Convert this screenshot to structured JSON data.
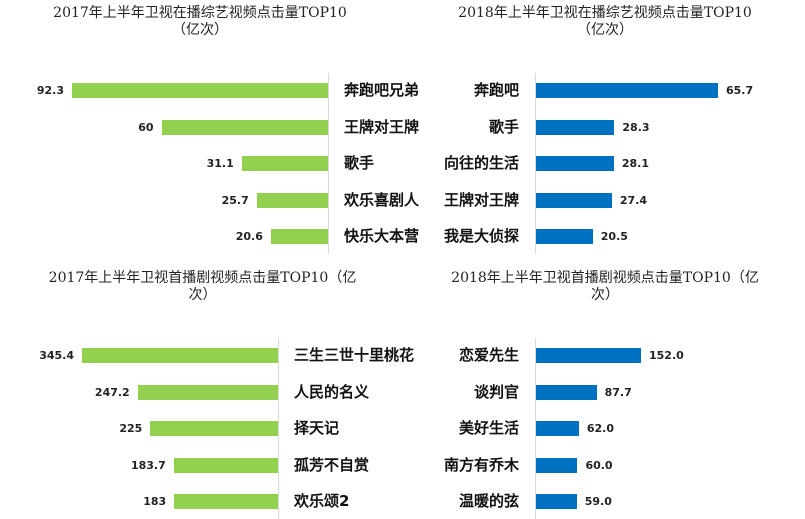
{
  "chart_data": [
    {
      "type": "bar",
      "title": "2017年上半年卫视在播综艺视频点击量TOP10（亿次）",
      "title_lines": [
        "2017年上半年卫视在播综艺视频点击量TOP10",
        "（亿次）"
      ],
      "categories": [
        "奔跑吧兄弟",
        "王牌对王牌",
        "歌手",
        "欢乐喜剧人",
        "快乐大本营"
      ],
      "series": [
        {
          "values": [
            92.3,
            60,
            31.1,
            25.7,
            20.6
          ]
        }
      ],
      "value_labels": [
        "92.3",
        "60",
        "31.1",
        "25.7",
        "20.6"
      ],
      "xlim": [
        0,
        92.3
      ],
      "orientation": "horizontal",
      "bar_direction": "leftward",
      "color": "#92d050"
    },
    {
      "type": "bar",
      "title": "2018年上半年卫视在播综艺视频点击量TOP10（亿次）",
      "title_lines": [
        "2018年上半年卫视在播综艺视频点击量TOP10",
        "（亿次）"
      ],
      "categories": [
        "奔跑吧",
        "歌手",
        "向往的生活",
        "王牌对王牌",
        "我是大侦探"
      ],
      "series": [
        {
          "values": [
            65.7,
            28.3,
            28.1,
            27.4,
            20.5
          ]
        }
      ],
      "value_labels": [
        "65.7",
        "28.3",
        "28.1",
        "27.4",
        "20.5"
      ],
      "xlim": [
        0,
        65.7
      ],
      "orientation": "horizontal",
      "bar_direction": "rightward",
      "color": "#0070c0"
    },
    {
      "type": "bar",
      "title": "2017年上半年卫视首播剧视频点击量TOP10（亿次）",
      "title_lines": [
        "2017年上半年卫视首播剧视频点击量TOP10（亿",
        "次）"
      ],
      "categories": [
        "三生三世十里桃花",
        "人民的名义",
        "择天记",
        "孤芳不自赏",
        "欢乐颂2"
      ],
      "series": [
        {
          "values": [
            345.4,
            247.2,
            225,
            183.7,
            183
          ]
        }
      ],
      "value_labels": [
        "345.4",
        "247.2",
        "225",
        "183.7",
        "183"
      ],
      "xlim": [
        0,
        345.4
      ],
      "orientation": "horizontal",
      "bar_direction": "leftward",
      "color": "#92d050"
    },
    {
      "type": "bar",
      "title": "2018年上半年卫视首播剧视频点击量TOP10（亿次）",
      "title_lines": [
        "2018年上半年卫视首播剧视频点击量TOP10（亿",
        "次）"
      ],
      "categories": [
        "恋爱先生",
        "谈判官",
        "美好生活",
        "南方有乔木",
        "温暖的弦"
      ],
      "series": [
        {
          "values": [
            152.0,
            87.7,
            62.0,
            60.0,
            59.0
          ]
        }
      ],
      "value_labels": [
        "152.0",
        "87.7",
        "62.0",
        "60.0",
        "59.0"
      ],
      "xlim": [
        0,
        152.0
      ],
      "orientation": "horizontal",
      "bar_direction": "rightward",
      "color": "#0070c0"
    }
  ]
}
